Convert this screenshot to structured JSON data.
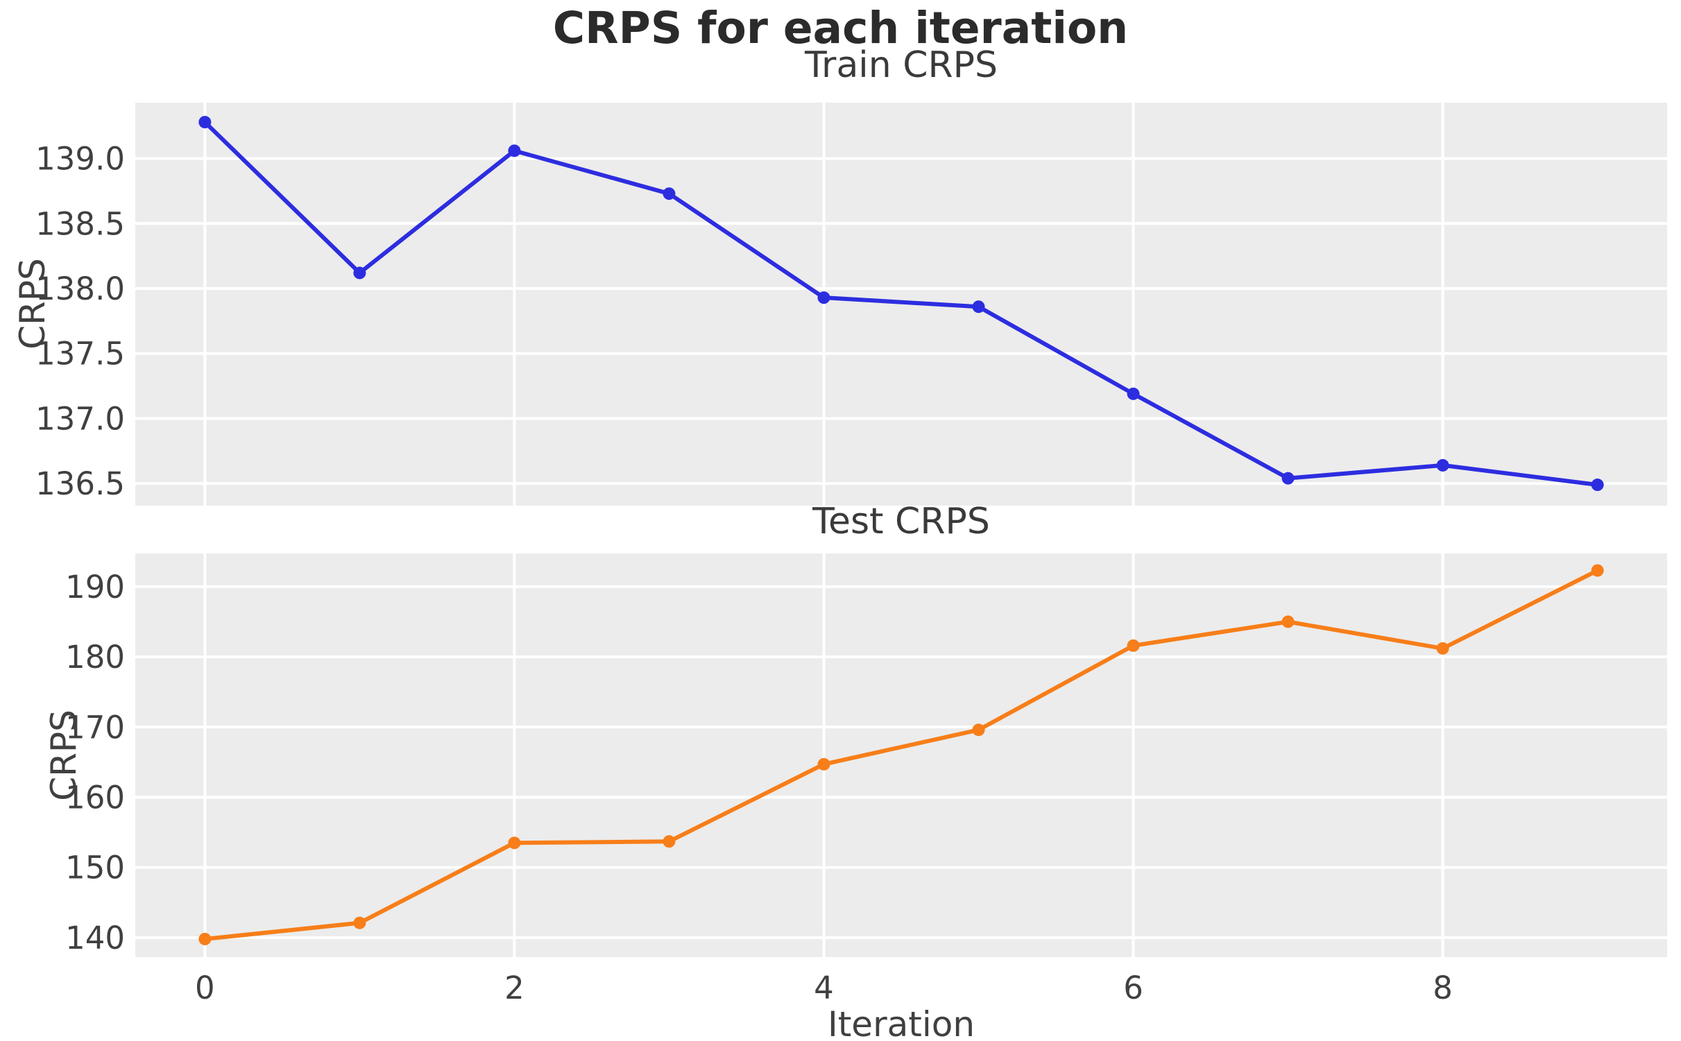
{
  "figure": {
    "title": "CRPS for each iteration"
  },
  "chart_data": [
    {
      "type": "line",
      "title": "Train CRPS",
      "ylabel": "CRPS",
      "xlabel": "",
      "x": [
        0,
        1,
        2,
        3,
        4,
        5,
        6,
        7,
        8,
        9
      ],
      "values": [
        139.28,
        138.12,
        139.06,
        138.73,
        137.93,
        137.86,
        137.19,
        136.54,
        136.64,
        136.49
      ],
      "series_name": "Train CRPS",
      "line_color": "#2d2de0",
      "marker": "circle",
      "grid": true,
      "legend": "none",
      "xlim": [
        -0.45,
        9.45
      ],
      "ylim": [
        136.33,
        139.43
      ],
      "yticks": [
        136.5,
        137.0,
        137.5,
        138.0,
        138.5,
        139.0
      ],
      "ytick_labels": [
        "136.5",
        "137.0",
        "137.5",
        "138.0",
        "138.5",
        "139.0"
      ],
      "xticks": [
        0,
        2,
        4,
        6,
        8
      ],
      "xtick_labels": [],
      "show_xtick_labels": false
    },
    {
      "type": "line",
      "title": "Test CRPS",
      "ylabel": "CRPS",
      "xlabel": "Iteration",
      "x": [
        0,
        1,
        2,
        3,
        4,
        5,
        6,
        7,
        8,
        9
      ],
      "values": [
        139.8,
        142.1,
        153.5,
        153.7,
        164.7,
        169.6,
        181.6,
        185.0,
        181.2,
        192.3
      ],
      "series_name": "Test CRPS",
      "line_color": "#f77e19",
      "marker": "circle",
      "grid": true,
      "legend": "none",
      "xlim": [
        -0.45,
        9.45
      ],
      "ylim": [
        137.23,
        194.73
      ],
      "yticks": [
        140,
        150,
        160,
        170,
        180,
        190
      ],
      "ytick_labels": [
        "140",
        "150",
        "160",
        "170",
        "180",
        "190"
      ],
      "xticks": [
        0,
        2,
        4,
        6,
        8
      ],
      "xtick_labels": [
        "0",
        "2",
        "4",
        "6",
        "8"
      ],
      "show_xtick_labels": true
    }
  ],
  "style": {
    "axes_background": "#ececec",
    "gridline_color": "#ffffff",
    "title_color": "#2b2b2b",
    "tick_label_color": "#404040"
  }
}
